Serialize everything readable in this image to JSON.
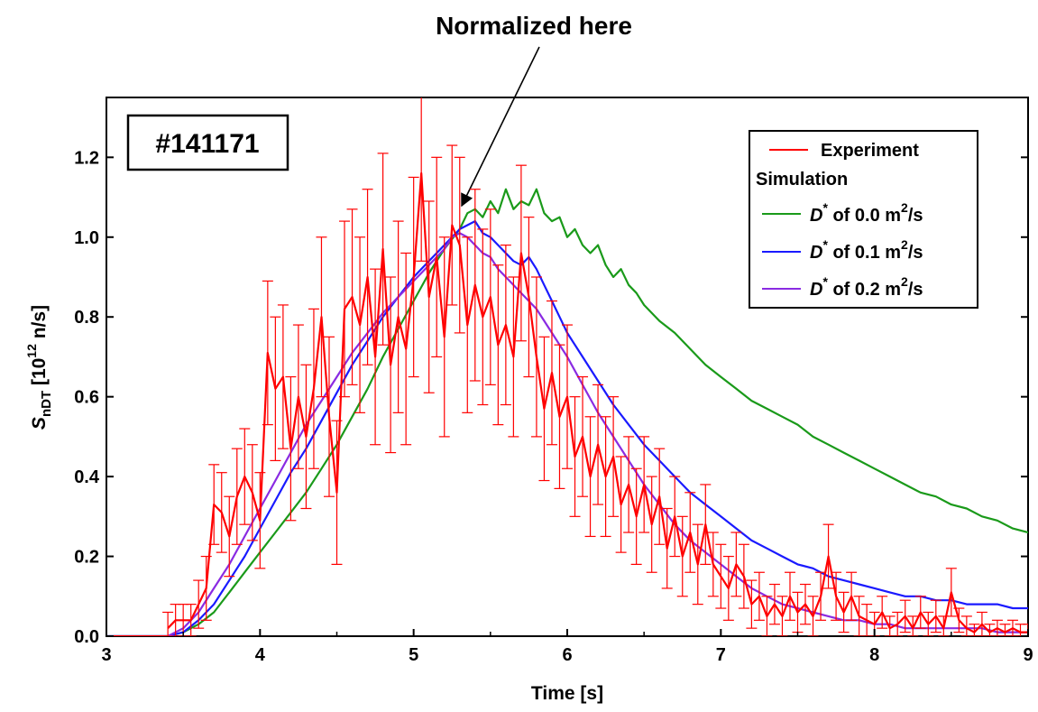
{
  "annotation": "Normalized here",
  "shot_label": "#141171",
  "legend": {
    "experiment": "Experiment",
    "simulation": "Simulation",
    "d00": {
      "prefix": "D",
      "sup": "*",
      "text": " of 0.0 m",
      "sup2": "2",
      "unit": "/s"
    },
    "d01": {
      "prefix": "D",
      "sup": "*",
      "text": " of 0.1 m",
      "sup2": "2",
      "unit": "/s"
    },
    "d02": {
      "prefix": "D",
      "sup": "*",
      "text": " of 0.2 m",
      "sup2": "2",
      "unit": "/s"
    }
  },
  "colors": {
    "experiment": "#ff0000",
    "d00": "#1a9a1a",
    "d01": "#1a1aff",
    "d02": "#8a2be2",
    "axis": "#000000"
  },
  "chart_data": {
    "type": "line",
    "xlabel": "Time [s]",
    "ylabel": {
      "main": "S",
      "sub": "nDT",
      "bracket": " [10",
      "sup": "12",
      "unit": " n/s]"
    },
    "xlim": [
      3,
      9
    ],
    "ylim": [
      0,
      1.35
    ],
    "xticks": [
      "3",
      "4",
      "5",
      "6",
      "7",
      "8",
      "9"
    ],
    "yticks": [
      "0.0",
      "0.2",
      "0.4",
      "0.6",
      "0.8",
      "1.0",
      "1.2"
    ],
    "grid": false,
    "legend_position": "top-right",
    "series": [
      {
        "name": "Experiment",
        "key": "experiment",
        "errorbars": true,
        "x": [
          3.4,
          3.45,
          3.5,
          3.55,
          3.6,
          3.65,
          3.7,
          3.75,
          3.8,
          3.85,
          3.9,
          3.95,
          4.0,
          4.05,
          4.1,
          4.15,
          4.2,
          4.25,
          4.3,
          4.35,
          4.4,
          4.45,
          4.5,
          4.55,
          4.6,
          4.65,
          4.7,
          4.75,
          4.8,
          4.85,
          4.9,
          4.95,
          5.0,
          5.05,
          5.1,
          5.15,
          5.2,
          5.25,
          5.3,
          5.35,
          5.4,
          5.45,
          5.5,
          5.55,
          5.6,
          5.65,
          5.7,
          5.75,
          5.8,
          5.85,
          5.9,
          5.95,
          6.0,
          6.05,
          6.1,
          6.15,
          6.2,
          6.25,
          6.3,
          6.35,
          6.4,
          6.45,
          6.5,
          6.55,
          6.6,
          6.65,
          6.7,
          6.75,
          6.8,
          6.85,
          6.9,
          6.95,
          7.0,
          7.05,
          7.1,
          7.15,
          7.2,
          7.25,
          7.3,
          7.35,
          7.4,
          7.45,
          7.5,
          7.55,
          7.6,
          7.65,
          7.7,
          7.75,
          7.8,
          7.85,
          7.9,
          7.95,
          8.0,
          8.05,
          8.1,
          8.15,
          8.2,
          8.25,
          8.3,
          8.35,
          8.4,
          8.45,
          8.5,
          8.55,
          8.6,
          8.65,
          8.7,
          8.75,
          8.8,
          8.85,
          8.9,
          8.95,
          9.0
        ],
        "y": [
          0.02,
          0.04,
          0.04,
          0.04,
          0.08,
          0.12,
          0.33,
          0.31,
          0.25,
          0.35,
          0.4,
          0.36,
          0.29,
          0.71,
          0.62,
          0.65,
          0.47,
          0.6,
          0.5,
          0.62,
          0.8,
          0.55,
          0.36,
          0.82,
          0.85,
          0.78,
          0.9,
          0.7,
          0.97,
          0.68,
          0.8,
          0.72,
          0.9,
          1.16,
          0.85,
          0.95,
          0.75,
          1.03,
          0.98,
          0.78,
          0.88,
          0.8,
          0.85,
          0.73,
          0.78,
          0.7,
          0.96,
          0.85,
          0.7,
          0.57,
          0.66,
          0.55,
          0.6,
          0.45,
          0.5,
          0.4,
          0.48,
          0.4,
          0.45,
          0.33,
          0.38,
          0.3,
          0.38,
          0.28,
          0.35,
          0.22,
          0.3,
          0.2,
          0.26,
          0.18,
          0.28,
          0.18,
          0.15,
          0.12,
          0.18,
          0.15,
          0.08,
          0.1,
          0.05,
          0.08,
          0.05,
          0.1,
          0.06,
          0.08,
          0.05,
          0.1,
          0.2,
          0.1,
          0.06,
          0.1,
          0.05,
          0.04,
          0.03,
          0.06,
          0.02,
          0.03,
          0.05,
          0.02,
          0.06,
          0.03,
          0.05,
          0.02,
          0.11,
          0.04,
          0.02,
          0.01,
          0.03,
          0.01,
          0.02,
          0.01,
          0.02,
          0.01,
          0.01
        ],
        "err": [
          0.04,
          0.04,
          0.04,
          0.04,
          0.06,
          0.08,
          0.1,
          0.1,
          0.1,
          0.12,
          0.12,
          0.12,
          0.12,
          0.18,
          0.18,
          0.18,
          0.18,
          0.18,
          0.18,
          0.2,
          0.2,
          0.2,
          0.18,
          0.22,
          0.22,
          0.22,
          0.22,
          0.22,
          0.24,
          0.22,
          0.24,
          0.24,
          0.25,
          0.22,
          0.24,
          0.25,
          0.25,
          0.2,
          0.22,
          0.22,
          0.24,
          0.22,
          0.22,
          0.2,
          0.2,
          0.2,
          0.22,
          0.2,
          0.2,
          0.18,
          0.18,
          0.18,
          0.18,
          0.15,
          0.15,
          0.15,
          0.15,
          0.15,
          0.15,
          0.12,
          0.12,
          0.12,
          0.12,
          0.12,
          0.12,
          0.1,
          0.1,
          0.1,
          0.1,
          0.1,
          0.1,
          0.08,
          0.08,
          0.08,
          0.08,
          0.08,
          0.06,
          0.06,
          0.05,
          0.05,
          0.05,
          0.06,
          0.05,
          0.05,
          0.05,
          0.06,
          0.08,
          0.06,
          0.05,
          0.06,
          0.05,
          0.04,
          0.03,
          0.04,
          0.03,
          0.03,
          0.04,
          0.03,
          0.04,
          0.03,
          0.04,
          0.03,
          0.06,
          0.03,
          0.03,
          0.02,
          0.03,
          0.02,
          0.02,
          0.02,
          0.02,
          0.02,
          0.02
        ]
      },
      {
        "name": "D* of 0.0 m2/s",
        "key": "d00",
        "x": [
          3.0,
          3.4,
          3.5,
          3.6,
          3.7,
          3.8,
          3.9,
          4.0,
          4.1,
          4.2,
          4.3,
          4.4,
          4.5,
          4.6,
          4.7,
          4.8,
          4.9,
          5.0,
          5.1,
          5.2,
          5.3,
          5.35,
          5.4,
          5.45,
          5.5,
          5.55,
          5.6,
          5.65,
          5.7,
          5.75,
          5.8,
          5.85,
          5.9,
          5.95,
          6.0,
          6.05,
          6.1,
          6.15,
          6.2,
          6.25,
          6.3,
          6.35,
          6.4,
          6.45,
          6.5,
          6.6,
          6.7,
          6.8,
          6.9,
          7.0,
          7.1,
          7.2,
          7.3,
          7.4,
          7.5,
          7.6,
          7.7,
          7.8,
          7.9,
          8.0,
          8.1,
          8.2,
          8.3,
          8.4,
          8.5,
          8.6,
          8.7,
          8.8,
          8.9,
          9.0
        ],
        "y": [
          0.0,
          0.0,
          0.01,
          0.03,
          0.06,
          0.11,
          0.16,
          0.21,
          0.26,
          0.31,
          0.36,
          0.42,
          0.48,
          0.55,
          0.62,
          0.7,
          0.77,
          0.84,
          0.91,
          0.97,
          1.02,
          1.06,
          1.07,
          1.05,
          1.09,
          1.06,
          1.12,
          1.07,
          1.09,
          1.08,
          1.12,
          1.06,
          1.04,
          1.05,
          1.0,
          1.02,
          0.98,
          0.96,
          0.98,
          0.93,
          0.9,
          0.92,
          0.88,
          0.86,
          0.83,
          0.79,
          0.76,
          0.72,
          0.68,
          0.65,
          0.62,
          0.59,
          0.57,
          0.55,
          0.53,
          0.5,
          0.48,
          0.46,
          0.44,
          0.42,
          0.4,
          0.38,
          0.36,
          0.35,
          0.33,
          0.32,
          0.3,
          0.29,
          0.27,
          0.26
        ]
      },
      {
        "name": "D* of 0.1 m2/s",
        "key": "d01",
        "x": [
          3.0,
          3.4,
          3.5,
          3.6,
          3.7,
          3.8,
          3.9,
          4.0,
          4.1,
          4.2,
          4.3,
          4.4,
          4.5,
          4.6,
          4.7,
          4.8,
          4.9,
          5.0,
          5.1,
          5.2,
          5.3,
          5.35,
          5.4,
          5.45,
          5.5,
          5.55,
          5.6,
          5.65,
          5.7,
          5.75,
          5.8,
          5.85,
          5.9,
          5.95,
          6.0,
          6.1,
          6.2,
          6.3,
          6.4,
          6.5,
          6.6,
          6.7,
          6.8,
          6.9,
          7.0,
          7.1,
          7.2,
          7.3,
          7.4,
          7.5,
          7.6,
          7.7,
          7.8,
          7.9,
          8.0,
          8.1,
          8.2,
          8.3,
          8.4,
          8.5,
          8.6,
          8.7,
          8.8,
          8.9,
          9.0
        ],
        "y": [
          0.0,
          0.0,
          0.01,
          0.04,
          0.08,
          0.14,
          0.2,
          0.27,
          0.34,
          0.41,
          0.47,
          0.54,
          0.61,
          0.68,
          0.74,
          0.8,
          0.85,
          0.9,
          0.94,
          0.98,
          1.02,
          1.03,
          1.04,
          1.01,
          1.0,
          0.98,
          0.96,
          0.94,
          0.93,
          0.95,
          0.92,
          0.88,
          0.84,
          0.8,
          0.76,
          0.7,
          0.64,
          0.58,
          0.53,
          0.48,
          0.44,
          0.4,
          0.36,
          0.33,
          0.3,
          0.27,
          0.24,
          0.22,
          0.2,
          0.18,
          0.17,
          0.15,
          0.14,
          0.13,
          0.12,
          0.11,
          0.1,
          0.1,
          0.09,
          0.09,
          0.08,
          0.08,
          0.08,
          0.07,
          0.07
        ]
      },
      {
        "name": "D* of 0.2 m2/s",
        "key": "d02",
        "x": [
          3.0,
          3.4,
          3.5,
          3.6,
          3.7,
          3.8,
          3.9,
          4.0,
          4.1,
          4.2,
          4.3,
          4.4,
          4.5,
          4.6,
          4.7,
          4.8,
          4.9,
          5.0,
          5.1,
          5.2,
          5.25,
          5.3,
          5.35,
          5.4,
          5.45,
          5.5,
          5.55,
          5.6,
          5.7,
          5.8,
          5.9,
          6.0,
          6.1,
          6.2,
          6.3,
          6.4,
          6.5,
          6.6,
          6.7,
          6.8,
          6.9,
          7.0,
          7.1,
          7.2,
          7.3,
          7.4,
          7.5,
          7.6,
          7.7,
          7.8,
          7.9,
          8.0,
          8.1,
          8.2,
          8.3,
          8.4,
          8.5,
          8.6,
          8.7,
          8.8,
          8.9,
          9.0
        ],
        "y": [
          0.0,
          0.0,
          0.02,
          0.06,
          0.12,
          0.18,
          0.25,
          0.32,
          0.39,
          0.46,
          0.53,
          0.59,
          0.65,
          0.71,
          0.76,
          0.81,
          0.85,
          0.89,
          0.93,
          0.97,
          1.0,
          1.01,
          1.0,
          0.98,
          0.96,
          0.95,
          0.92,
          0.9,
          0.86,
          0.82,
          0.76,
          0.7,
          0.63,
          0.56,
          0.5,
          0.44,
          0.38,
          0.33,
          0.28,
          0.24,
          0.21,
          0.18,
          0.15,
          0.12,
          0.1,
          0.08,
          0.07,
          0.06,
          0.05,
          0.04,
          0.04,
          0.03,
          0.03,
          0.02,
          0.02,
          0.02,
          0.02,
          0.02,
          0.02,
          0.01,
          0.01,
          0.01
        ]
      }
    ]
  }
}
